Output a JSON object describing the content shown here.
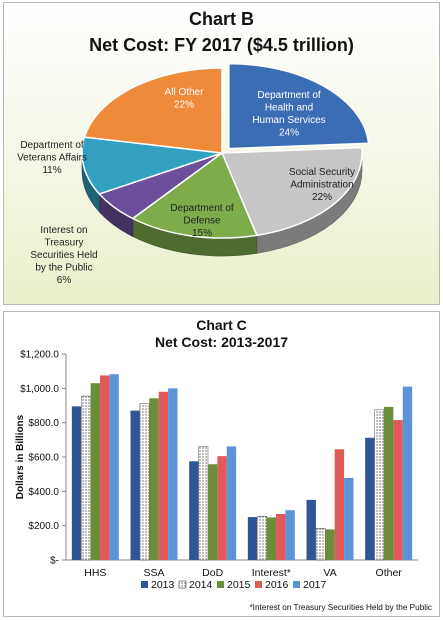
{
  "chart_data": [
    {
      "type": "pie",
      "title": "Chart B",
      "subtitle": "Net Cost: FY 2017 ($4.5 trillion)",
      "slices": [
        {
          "label": "Department of Health and Human Services",
          "label_lines": [
            "Department of",
            "Health and",
            "Human Services"
          ],
          "value": 24,
          "value_label": "24%",
          "color": "#3b6db5"
        },
        {
          "label": "Social Security Administration",
          "label_lines": [
            "Social Security",
            "Administration"
          ],
          "value": 22,
          "value_label": "22%",
          "color": "#c6c6c6"
        },
        {
          "label": "Department of Defense",
          "label_lines": [
            "Department of",
            "Defense"
          ],
          "value": 15,
          "value_label": "15%",
          "color": "#7fac4a"
        },
        {
          "label": "Interest on Treasury Securities Held by the Public",
          "label_lines": [
            "Interest on",
            "Treasury",
            "Securities Held",
            "by the Public"
          ],
          "value": 6,
          "value_label": "6%",
          "color": "#6c4f9c"
        },
        {
          "label": "Department of Veterans Affairs",
          "label_lines": [
            "Department of",
            "Veterans Affairs"
          ],
          "value": 11,
          "value_label": "11%",
          "color": "#33a0c0"
        },
        {
          "label": "All Other",
          "label_lines": [
            "All Other"
          ],
          "value": 22,
          "value_label": "22%",
          "color": "#ee8a3a"
        }
      ]
    },
    {
      "type": "bar",
      "title": "Chart C",
      "subtitle": "Net Cost: 2013-2017",
      "ylabel": "Dollars in Billions",
      "xlabel": "",
      "ylim": [
        0,
        1200
      ],
      "yticks": [
        0,
        200,
        400,
        600,
        800,
        1000,
        1200
      ],
      "ytick_labels": [
        "$-",
        "$200.0",
        "$400.0",
        "$600.0",
        "$800.0",
        "$1,000.0",
        "$1,200.0"
      ],
      "categories": [
        "HHS",
        "SSA",
        "DoD",
        "Interest*",
        "VA",
        "Other"
      ],
      "series": [
        {
          "name": "2013",
          "color": "#2f5597",
          "pattern": "solid",
          "values": [
            895,
            870,
            575,
            250,
            350,
            712
          ]
        },
        {
          "name": "2014",
          "color": "#ffffff",
          "pattern": "dots",
          "values": [
            955,
            912,
            660,
            255,
            185,
            875
          ]
        },
        {
          "name": "2015",
          "color": "#6b8e3a",
          "pattern": "solid",
          "values": [
            1030,
            942,
            558,
            248,
            178,
            892
          ]
        },
        {
          "name": "2016",
          "color": "#e05a5a",
          "pattern": "solid",
          "values": [
            1075,
            980,
            605,
            268,
            645,
            815
          ]
        },
        {
          "name": "2017",
          "color": "#5b93d6",
          "pattern": "solid",
          "values": [
            1082,
            1000,
            662,
            290,
            478,
            1010
          ]
        }
      ],
      "legend": "bottom",
      "grid": false,
      "footnote": "*Interest on Treasury Securities Held by the Public"
    }
  ]
}
